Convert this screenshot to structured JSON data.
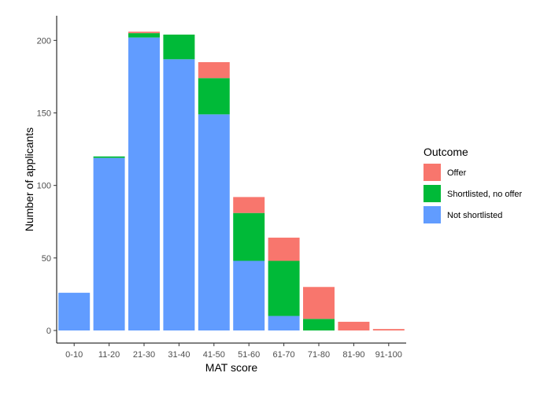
{
  "chart_data": {
    "type": "bar",
    "stacked": true,
    "xlabel": "MAT score",
    "ylabel": "Number of applicants",
    "categories": [
      "0-10",
      "11-20",
      "21-30",
      "31-40",
      "41-50",
      "51-60",
      "61-70",
      "71-80",
      "81-90",
      "91-100"
    ],
    "yticks": [
      0,
      50,
      100,
      150,
      200
    ],
    "ylim": [
      0,
      217
    ],
    "grid": false,
    "legend_position": "right",
    "legend_title": "Outcome",
    "series": [
      {
        "name": "Not shortlisted",
        "color": "#619CFF",
        "values": [
          26,
          119,
          202,
          187,
          149,
          48,
          10,
          0,
          0,
          0
        ]
      },
      {
        "name": "Shortlisted, no offer",
        "color": "#00BA38",
        "values": [
          0,
          1,
          3,
          17,
          25,
          33,
          38,
          8,
          0,
          0
        ]
      },
      {
        "name": "Offer",
        "color": "#F8766D",
        "values": [
          0,
          0,
          1,
          0,
          11,
          11,
          16,
          22,
          6,
          1
        ]
      }
    ],
    "legend_order": [
      "Offer",
      "Shortlisted, no offer",
      "Not shortlisted"
    ]
  }
}
